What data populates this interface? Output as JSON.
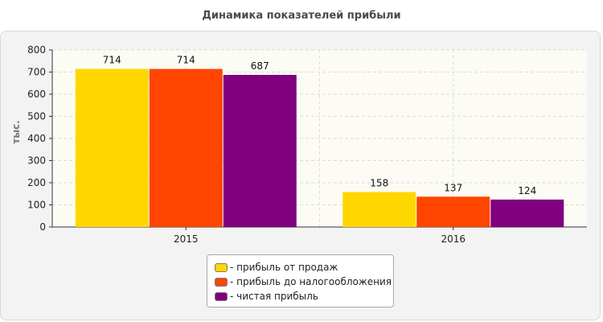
{
  "chart_data": {
    "type": "bar",
    "title": "Динамика показателей прибыли",
    "ylabel": "тыс.",
    "xlabel": "",
    "categories": [
      "2015",
      "2016"
    ],
    "ylim": [
      0,
      800
    ],
    "yticks": [
      0,
      100,
      200,
      300,
      400,
      500,
      600,
      700,
      800
    ],
    "grid": true,
    "legend_position": "bottom",
    "series": [
      {
        "name": "- прибыль от продаж",
        "color": "#FFD700",
        "values": [
          714,
          158
        ]
      },
      {
        "name": "- прибыль до налогообложения",
        "color": "#FF4500",
        "values": [
          714,
          137
        ]
      },
      {
        "name": "- чистая прибыль",
        "color": "#800080",
        "values": [
          687,
          124
        ]
      }
    ]
  }
}
